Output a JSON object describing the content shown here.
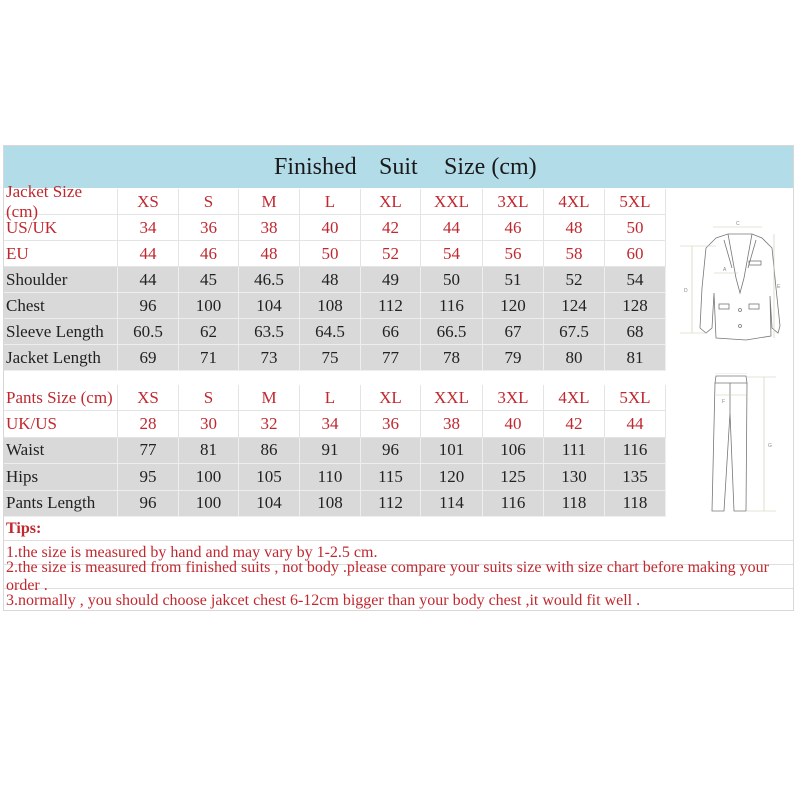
{
  "title": [
    "Finished",
    "Suit",
    "Size (cm)"
  ],
  "sizes": [
    "XS",
    "S",
    "M",
    "L",
    "XL",
    "XXL",
    "3XL",
    "4XL",
    "5XL"
  ],
  "jacket": {
    "header_label": "Jacket Size (cm)",
    "rows": [
      {
        "label": "US/UK",
        "values": [
          "34",
          "36",
          "38",
          "40",
          "42",
          "44",
          "46",
          "48",
          "50"
        ],
        "style": "red"
      },
      {
        "label": "EU",
        "values": [
          "44",
          "46",
          "48",
          "50",
          "52",
          "54",
          "56",
          "58",
          "60"
        ],
        "style": "red"
      },
      {
        "label": "Shoulder",
        "values": [
          "44",
          "45",
          "46.5",
          "48",
          "49",
          "50",
          "51",
          "52",
          "54"
        ],
        "style": "gray"
      },
      {
        "label": "Chest",
        "values": [
          "96",
          "100",
          "104",
          "108",
          "112",
          "116",
          "120",
          "124",
          "128"
        ],
        "style": "gray"
      },
      {
        "label": "Sleeve Length",
        "values": [
          "60.5",
          "62",
          "63.5",
          "64.5",
          "66",
          "66.5",
          "67",
          "67.5",
          "68"
        ],
        "style": "gray"
      },
      {
        "label": "Jacket Length",
        "values": [
          "69",
          "71",
          "73",
          "75",
          "77",
          "78",
          "79",
          "80",
          "81"
        ],
        "style": "gray"
      }
    ]
  },
  "pants": {
    "header_label": "Pants Size (cm)",
    "rows": [
      {
        "label": "UK/US",
        "values": [
          "28",
          "30",
          "32",
          "34",
          "36",
          "38",
          "40",
          "42",
          "44"
        ],
        "style": "red"
      },
      {
        "label": "Waist",
        "values": [
          "77",
          "81",
          "86",
          "91",
          "96",
          "101",
          "106",
          "111",
          "116"
        ],
        "style": "gray"
      },
      {
        "label": "Hips",
        "values": [
          "95",
          "100",
          "105",
          "110",
          "115",
          "120",
          "125",
          "130",
          "135"
        ],
        "style": "gray"
      },
      {
        "label": "Pants Length",
        "values": [
          "96",
          "100",
          "104",
          "108",
          "112",
          "114",
          "116",
          "118",
          "118"
        ],
        "style": "gray"
      }
    ]
  },
  "tips": {
    "heading": "Tips:",
    "items": [
      "1.the size is measured by hand and may vary by 1-2.5 cm.",
      "2.the size is measured from finished suits , not body .please compare your suits size with size chart before making your order .",
      "3.normally , you should choose jakcet chest 6-12cm bigger than your body chest ,it would fit well ."
    ]
  },
  "colors": {
    "header_band": "#b3dce9",
    "red_text": "#c0282f",
    "gray_row": "#d9d9d9"
  },
  "illustrations": {
    "jacket_labels": [
      "A",
      "C",
      "D",
      "E"
    ],
    "pants_labels": [
      "B",
      "F",
      "G"
    ]
  }
}
